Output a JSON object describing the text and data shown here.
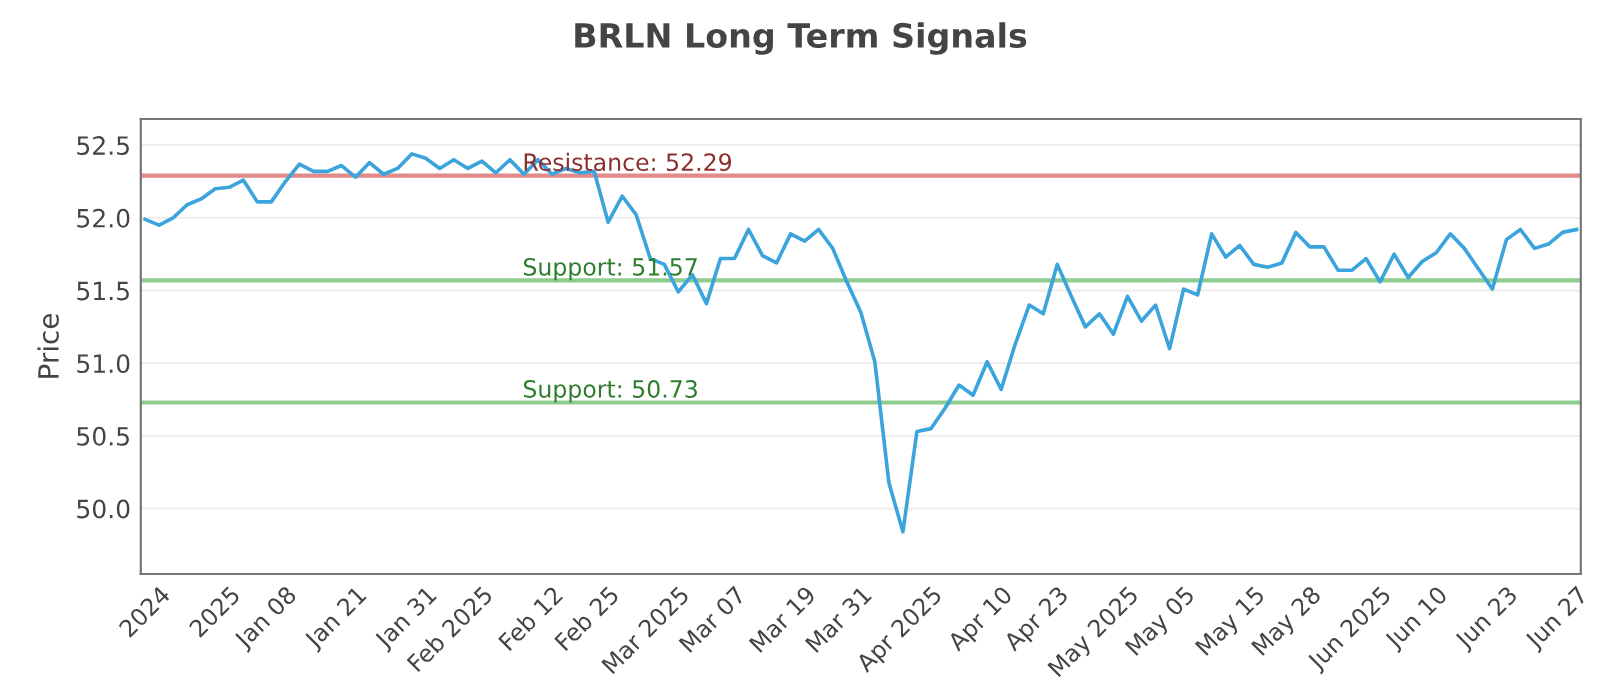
{
  "chart_data": {
    "type": "line",
    "title": "BRLN Long Term Signals",
    "ylabel": "Price",
    "categories": [
      null,
      "2024",
      null,
      null,
      null,
      null,
      "2025",
      null,
      null,
      null,
      "Jan 08",
      null,
      null,
      null,
      null,
      "Jan 21",
      null,
      null,
      null,
      null,
      "Jan 31",
      null,
      null,
      null,
      "Feb 2025",
      null,
      null,
      null,
      null,
      "Feb 12",
      null,
      null,
      null,
      "Feb 25",
      null,
      null,
      null,
      null,
      "Mar 2025",
      null,
      null,
      null,
      "Mar 07",
      null,
      null,
      null,
      null,
      "Mar 19",
      null,
      null,
      null,
      "Mar 31",
      null,
      null,
      null,
      null,
      "Apr 2025",
      null,
      null,
      null,
      null,
      "Apr 10",
      null,
      null,
      null,
      "Apr 23",
      null,
      null,
      null,
      null,
      "May 2025",
      null,
      null,
      null,
      "May 05",
      null,
      null,
      null,
      null,
      "May 15",
      null,
      null,
      null,
      "May 28",
      null,
      null,
      null,
      null,
      "Jun 2025",
      null,
      null,
      null,
      "Jun 10",
      null,
      null,
      null,
      null,
      "Jun 23",
      null,
      null,
      null,
      null,
      "Jun 27"
    ],
    "series": [
      {
        "color": "#3ba4dc",
        "values": [
          51.99,
          51.95,
          52.0,
          52.09,
          52.13,
          52.2,
          52.21,
          52.26,
          52.11,
          52.11,
          52.25,
          52.37,
          52.32,
          52.32,
          52.36,
          52.28,
          52.38,
          52.3,
          52.34,
          52.44,
          52.41,
          52.34,
          52.4,
          52.34,
          52.39,
          52.31,
          52.4,
          52.3,
          52.4,
          52.3,
          52.34,
          52.31,
          52.32,
          51.97,
          52.15,
          52.02,
          51.72,
          51.68,
          51.49,
          51.61,
          51.41,
          51.72,
          51.72,
          51.92,
          51.74,
          51.69,
          51.89,
          51.84,
          51.92,
          51.79,
          51.56,
          51.35,
          51.01,
          50.18,
          49.84,
          50.53,
          50.55,
          50.69,
          50.85,
          50.78,
          51.01,
          50.82,
          51.13,
          51.4,
          51.34,
          51.68,
          51.46,
          51.25,
          51.34,
          51.2,
          51.46,
          51.29,
          51.4,
          51.1,
          51.51,
          51.47,
          51.89,
          51.73,
          51.81,
          51.68,
          51.66,
          51.69,
          51.9,
          51.8,
          51.8,
          51.64,
          51.64,
          51.72,
          51.56,
          51.75,
          51.59,
          51.7,
          51.76,
          51.89,
          51.79,
          51.65,
          51.51,
          51.85,
          51.92,
          51.79,
          51.82,
          51.9,
          51.92
        ]
      }
    ],
    "ylim": [
      49.55,
      52.68
    ],
    "yticks": [
      {
        "value": 50,
        "label": "50.0"
      },
      {
        "value": 50.5,
        "label": "50.5"
      },
      {
        "value": 51,
        "label": "51.0"
      },
      {
        "value": 51.5,
        "label": "51.5"
      },
      {
        "value": 52,
        "label": "52.0"
      },
      {
        "value": 52.5,
        "label": "52.5"
      }
    ],
    "grid": "y",
    "marker": "none",
    "line_style": "solid",
    "legend": false,
    "ref_lines": [
      {
        "axis": "y",
        "value": 52.29,
        "label": "Resistance: 52.29",
        "color": "#e08a8a"
      },
      {
        "axis": "y",
        "value": 51.57,
        "label": "Support: 51.57",
        "color": "#8fcc8f"
      },
      {
        "axis": "y",
        "value": 50.73,
        "label": "Support: 50.73",
        "color": "#8fcc8f"
      }
    ]
  }
}
